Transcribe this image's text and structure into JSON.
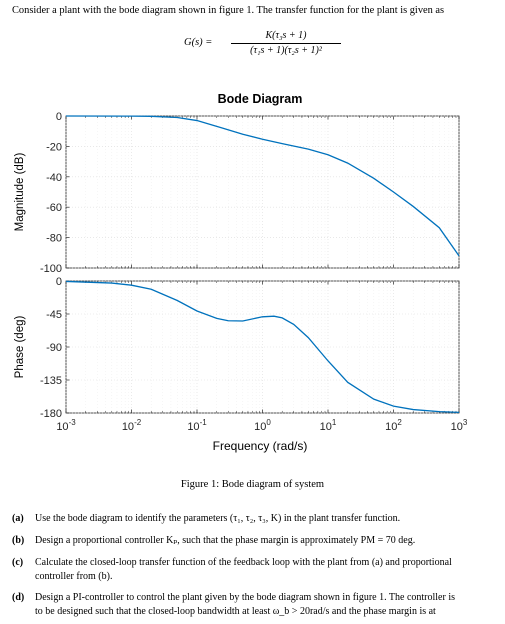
{
  "intro": "Consider a plant with the bode diagram shown in figure 1. The transfer function for the plant is given as",
  "equation": {
    "lhs": "G(s) =",
    "numerator": "K(τ₃s + 1)",
    "denominator": "(τ₁s + 1)(τ₂s + 1)²"
  },
  "figure_caption": "Figure 1: Bode diagram of system",
  "questions": [
    {
      "label": "(a)",
      "text": "Use the bode diagram to identify the parameters (τ₁, τ₂, τ₃, K) in the plant transfer function."
    },
    {
      "label": "(b)",
      "text": "Design a proportional controller Kₚ, such that the phase margin is approximately PM = 70 deg."
    },
    {
      "label": "(c)",
      "text": "Calculate the closed-loop transfer function of the feedback loop with the plant from (a) and proportional",
      "text2": "controller from (b)."
    },
    {
      "label": "(d)",
      "text": "Design a PI-controller to control the plant given by the bode diagram shown in figure 1. The controller is",
      "text2": "to be designed such that the closed-loop bandwidth at least ω_b > 20rad/s and the phase margin is at"
    }
  ],
  "chart_data": {
    "type": "line",
    "title": "Bode Diagram",
    "xlabel": "Frequency (rad/s)",
    "x_scale": "log",
    "xlim": [
      0.001,
      1000
    ],
    "x_ticks": [
      "10-3",
      "10-2",
      "10-1",
      "10 0",
      "10 1",
      "10 2",
      "10 3"
    ],
    "panels": [
      {
        "ylabel": "Magnitude (dB)",
        "ylim": [
          -100,
          0
        ],
        "y_ticks": [
          "0",
          "-20",
          "-40",
          "-60",
          "-80",
          "-100"
        ],
        "series": [
          {
            "color": "#0072BD",
            "x": [
              0.001,
              0.01,
              0.02,
              0.05,
              0.1,
              0.2,
              0.5,
              1,
              2,
              5,
              10,
              20,
              50,
              100,
              200,
              500,
              1000
            ],
            "y": [
              0,
              -0.1,
              -0.2,
              -1.0,
              -3.0,
              -6.8,
              -12.0,
              -15.3,
              -18.2,
              -21.8,
              -25.5,
              -31.0,
              -41.0,
              -50.0,
              -59.5,
              -73.5,
              -92.0
            ]
          }
        ]
      },
      {
        "ylabel": "Phase (deg)",
        "ylim": [
          -180,
          0
        ],
        "y_ticks": [
          "0",
          "-45",
          "-90",
          "-135",
          "-180"
        ],
        "series": [
          {
            "color": "#0072BD",
            "x": [
              0.001,
              0.005,
              0.01,
              0.02,
              0.05,
              0.1,
              0.2,
              0.3,
              0.5,
              1,
              1.5,
              2,
              3,
              5,
              10,
              20,
              50,
              100,
              200,
              500,
              1000
            ],
            "y": [
              -0.6,
              -2.8,
              -5.7,
              -11.3,
              -26.6,
              -40.9,
              -50.9,
              -54.2,
              -54.5,
              -48.8,
              -48.0,
              -50.3,
              -59.2,
              -77.2,
              -108.9,
              -138.2,
              -161.1,
              -170.6,
              -175.3,
              -178.1,
              -179.1
            ]
          }
        ]
      }
    ]
  }
}
